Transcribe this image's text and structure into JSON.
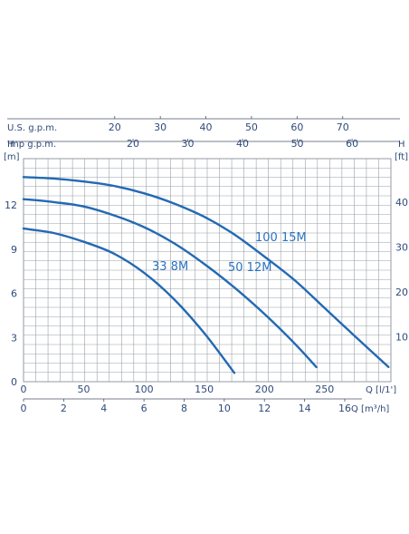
{
  "chart_data": {
    "type": "line",
    "top_scales": [
      {
        "label": "U.S. g.p.m.",
        "ticks": [
          20,
          30,
          40,
          50,
          60,
          70
        ],
        "per_l_min": 0.26417
      },
      {
        "label": "Imp g.p.m.",
        "ticks": [
          20,
          30,
          40,
          50,
          60
        ],
        "per_l_min": 0.21997
      }
    ],
    "left_axis": {
      "symbol": "H",
      "unit": "[m]",
      "ticks": [
        0,
        3,
        6,
        9,
        12
      ],
      "ylim": [
        0,
        15.15
      ]
    },
    "right_axis": {
      "symbol": "H",
      "unit": "[ft]",
      "ticks": [
        10,
        20,
        30,
        40
      ]
    },
    "bottom_axis_primary": {
      "label": "Q [l/1']",
      "ticks": [
        0,
        50,
        100,
        150,
        200,
        250
      ],
      "xlim": [
        0,
        305
      ]
    },
    "bottom_axis_secondary": {
      "label": "Q [m³/h]",
      "ticks": [
        0,
        2,
        4,
        6,
        8,
        10,
        12,
        14,
        16
      ]
    },
    "grid": true,
    "series": [
      {
        "name": "100 15M",
        "x": [
          0,
          25,
          50,
          75,
          100,
          125,
          150,
          175,
          200,
          225,
          250,
          275,
          303
        ],
        "y": [
          13.9,
          13.8,
          13.6,
          13.3,
          12.8,
          12.1,
          11.2,
          10.0,
          8.5,
          6.9,
          5.0,
          3.1,
          1.0
        ]
      },
      {
        "name": "50 12M",
        "x": [
          0,
          25,
          50,
          75,
          100,
          125,
          150,
          175,
          200,
          225,
          243
        ],
        "y": [
          12.4,
          12.2,
          11.9,
          11.3,
          10.5,
          9.4,
          8.0,
          6.4,
          4.6,
          2.6,
          1.0
        ]
      },
      {
        "name": "33 8M",
        "x": [
          0,
          25,
          50,
          75,
          100,
          125,
          150,
          175
        ],
        "y": [
          10.4,
          10.1,
          9.5,
          8.7,
          7.4,
          5.6,
          3.3,
          0.6
        ]
      }
    ],
    "line_color": "#2369b3"
  }
}
